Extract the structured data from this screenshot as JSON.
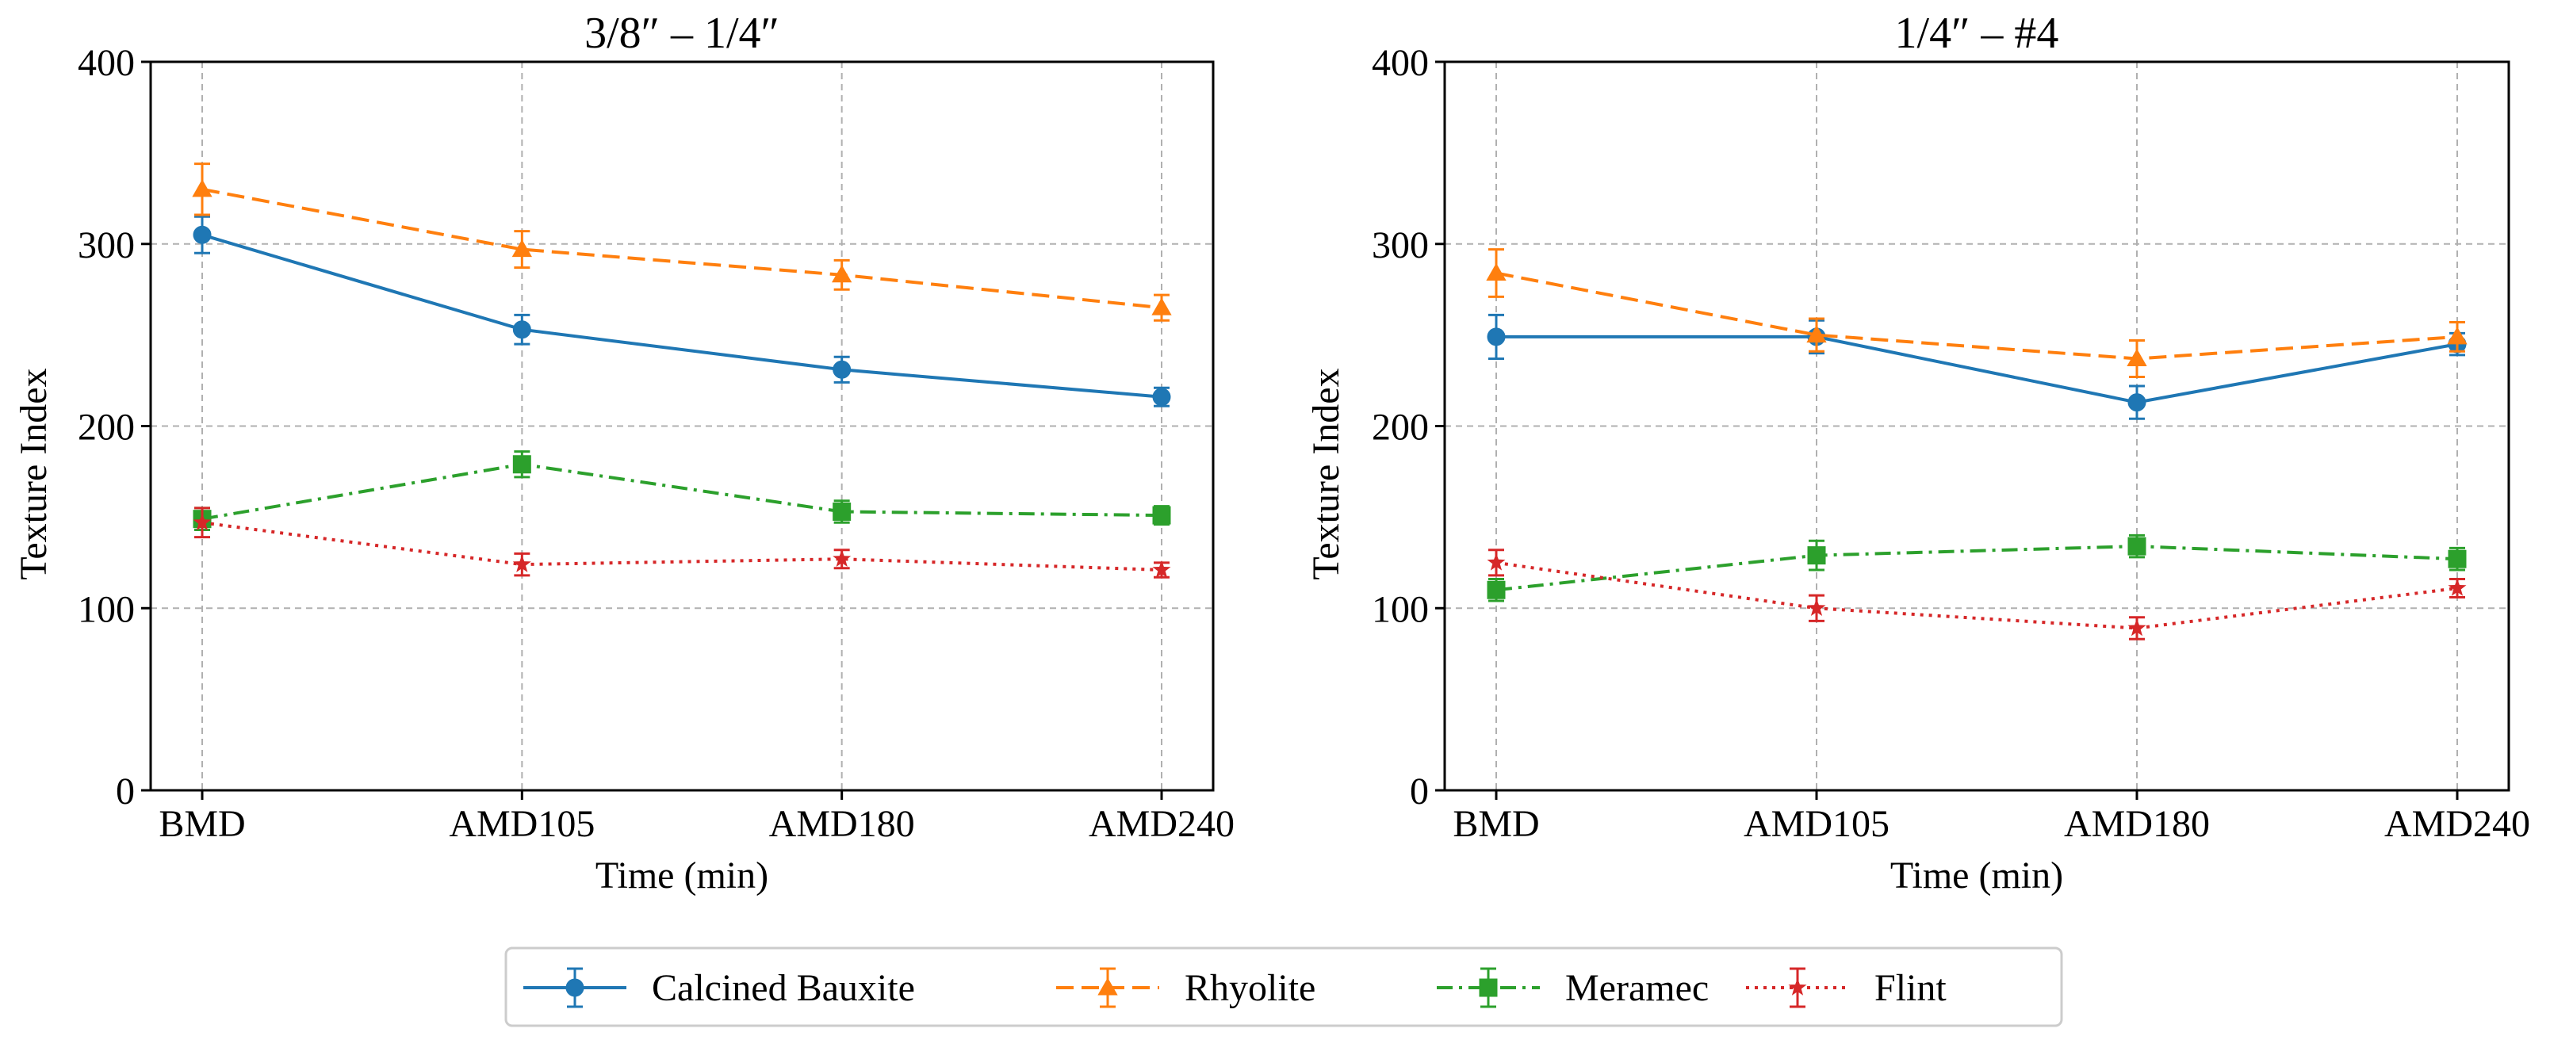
{
  "chart_data": [
    {
      "type": "line",
      "title": "3/8″ – 1/4″",
      "xlabel": "Time (min)",
      "ylabel": "Texture Index",
      "categories": [
        "BMD",
        "AMD105",
        "AMD180",
        "AMD240"
      ],
      "ylim": [
        0,
        400
      ],
      "yticks": [
        0,
        100,
        200,
        300,
        400
      ],
      "grid": true,
      "series": [
        {
          "name": "Calcined Bauxite",
          "values": [
            305,
            253,
            231,
            216
          ],
          "errors": [
            10,
            8,
            7,
            5
          ]
        },
        {
          "name": "Rhyolite",
          "values": [
            330,
            297,
            283,
            265
          ],
          "errors": [
            14,
            10,
            8,
            7
          ]
        },
        {
          "name": "Meramec",
          "values": [
            149,
            179,
            153,
            151
          ],
          "errors": [
            6,
            7,
            6,
            5
          ]
        },
        {
          "name": "Flint",
          "values": [
            147,
            124,
            127,
            121
          ],
          "errors": [
            8,
            6,
            5,
            4
          ]
        }
      ]
    },
    {
      "type": "line",
      "title": "1/4″ – #4",
      "xlabel": "Time (min)",
      "ylabel": "Texture Index",
      "categories": [
        "BMD",
        "AMD105",
        "AMD180",
        "AMD240"
      ],
      "ylim": [
        0,
        400
      ],
      "yticks": [
        0,
        100,
        200,
        300,
        400
      ],
      "grid": true,
      "series": [
        {
          "name": "Calcined Bauxite",
          "values": [
            249,
            249,
            213,
            245
          ],
          "errors": [
            12,
            9,
            9,
            6
          ]
        },
        {
          "name": "Rhyolite",
          "values": [
            284,
            250,
            237,
            249
          ],
          "errors": [
            13,
            9,
            10,
            8
          ]
        },
        {
          "name": "Meramec",
          "values": [
            110,
            129,
            134,
            127
          ],
          "errors": [
            6,
            8,
            6,
            6
          ]
        },
        {
          "name": "Flint",
          "values": [
            125,
            100,
            89,
            111
          ],
          "errors": [
            7,
            7,
            6,
            5
          ]
        }
      ]
    }
  ],
  "legend": {
    "position": "bottom-center",
    "entries": [
      {
        "name": "Calcined Bauxite",
        "color": "#1f77b4",
        "marker": "circle",
        "dash": "solid"
      },
      {
        "name": "Rhyolite",
        "color": "#ff7f0e",
        "marker": "triangle",
        "dash": "dashed"
      },
      {
        "name": "Meramec",
        "color": "#2ca02c",
        "marker": "square",
        "dash": "dashdot"
      },
      {
        "name": "Flint",
        "color": "#d62728",
        "marker": "star",
        "dash": "dotted"
      }
    ]
  }
}
